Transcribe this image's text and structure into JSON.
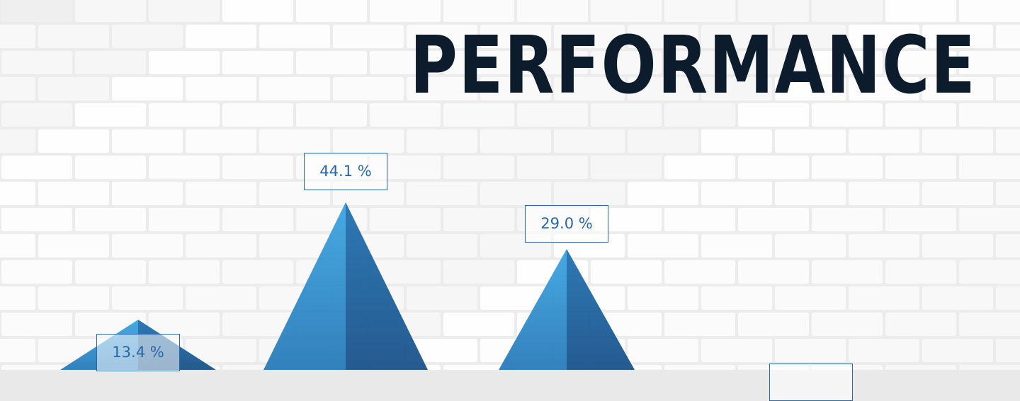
{
  "title": "PERFORMANCE",
  "colors": {
    "wall": "#ececec",
    "title": "#0d1c2c",
    "triangle_light": "#2a8fd0",
    "triangle_dark": "#1a5f9e",
    "label": "#2a67a8"
  },
  "chart_data": {
    "type": "bar",
    "shape": "triangle",
    "title": "PERFORMANCE",
    "values": [
      13.4,
      44.1,
      29.0,
      null
    ],
    "labels": [
      "13.4 %",
      "44.1 %",
      "29.0 %",
      ""
    ],
    "unit": "%",
    "grid": false,
    "legend": "none"
  }
}
